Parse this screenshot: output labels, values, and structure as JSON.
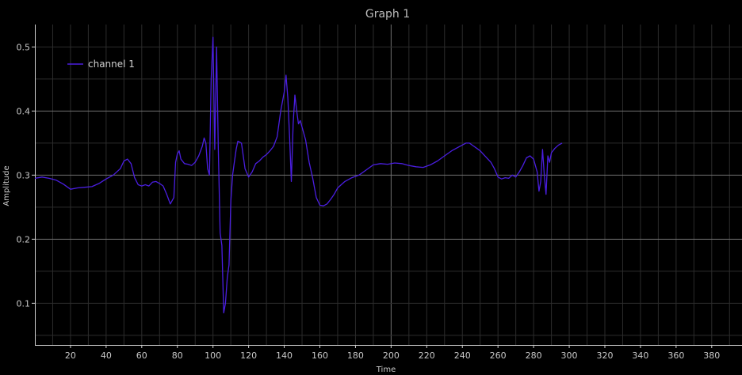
{
  "chart_data": {
    "type": "line",
    "title": "Graph 1",
    "xlabel": "Time",
    "ylabel": "Amplitude",
    "xlim": [
      0,
      397
    ],
    "ylim": [
      0.035,
      0.535
    ],
    "x_ticks": [
      20,
      40,
      60,
      80,
      100,
      120,
      140,
      160,
      180,
      200,
      220,
      240,
      260,
      280,
      300,
      320,
      340,
      360,
      380
    ],
    "y_ticks": [
      0.1,
      0.2,
      0.3,
      0.4,
      0.5
    ],
    "x_major_ticks": [
      200
    ],
    "y_major_ticks": [
      0.2,
      0.3,
      0.4
    ],
    "grid": true,
    "legend_position": "top-left",
    "series": [
      {
        "name": "channel 1",
        "color": "#4a1ee0",
        "x": [
          0,
          4,
          8,
          12,
          16,
          20,
          24,
          28,
          32,
          36,
          40,
          44,
          48,
          50,
          52,
          54,
          56,
          58,
          60,
          62,
          64,
          66,
          68,
          70,
          72,
          74,
          76,
          78,
          79,
          80,
          81,
          82,
          84,
          86,
          88,
          90,
          92,
          94,
          95,
          96,
          97,
          98,
          99,
          100,
          101,
          102,
          103,
          104,
          105,
          106,
          107,
          108,
          109,
          110,
          111,
          112,
          113,
          114,
          116,
          118,
          120,
          122,
          124,
          126,
          128,
          130,
          132,
          134,
          136,
          138,
          140,
          141,
          142,
          143,
          144,
          145,
          146,
          147,
          148,
          149,
          150,
          152,
          154,
          156,
          158,
          160,
          162,
          164,
          166,
          168,
          170,
          174,
          178,
          182,
          186,
          190,
          194,
          198,
          202,
          206,
          210,
          214,
          218,
          222,
          226,
          230,
          234,
          238,
          242,
          244,
          246,
          248,
          250,
          252,
          254,
          256,
          258,
          260,
          262,
          264,
          266,
          268,
          270,
          272,
          274,
          276,
          278,
          280,
          282,
          283,
          284,
          285,
          286,
          287,
          288,
          289,
          290,
          292,
          294,
          296
        ],
        "values": [
          0.295,
          0.297,
          0.295,
          0.292,
          0.286,
          0.278,
          0.28,
          0.281,
          0.282,
          0.287,
          0.294,
          0.3,
          0.31,
          0.322,
          0.325,
          0.318,
          0.296,
          0.285,
          0.283,
          0.285,
          0.283,
          0.289,
          0.29,
          0.287,
          0.283,
          0.27,
          0.255,
          0.265,
          0.32,
          0.333,
          0.338,
          0.325,
          0.318,
          0.317,
          0.315,
          0.32,
          0.33,
          0.345,
          0.358,
          0.35,
          0.31,
          0.3,
          0.45,
          0.515,
          0.34,
          0.5,
          0.34,
          0.21,
          0.19,
          0.085,
          0.1,
          0.14,
          0.16,
          0.26,
          0.3,
          0.32,
          0.34,
          0.353,
          0.35,
          0.31,
          0.297,
          0.305,
          0.318,
          0.322,
          0.328,
          0.332,
          0.338,
          0.345,
          0.36,
          0.4,
          0.43,
          0.456,
          0.42,
          0.36,
          0.29,
          0.38,
          0.425,
          0.4,
          0.38,
          0.385,
          0.375,
          0.355,
          0.32,
          0.295,
          0.265,
          0.253,
          0.252,
          0.255,
          0.262,
          0.27,
          0.28,
          0.29,
          0.296,
          0.3,
          0.308,
          0.316,
          0.318,
          0.317,
          0.319,
          0.318,
          0.315,
          0.313,
          0.312,
          0.316,
          0.322,
          0.33,
          0.338,
          0.344,
          0.35,
          0.35,
          0.346,
          0.342,
          0.338,
          0.332,
          0.326,
          0.32,
          0.31,
          0.297,
          0.294,
          0.296,
          0.295,
          0.3,
          0.297,
          0.305,
          0.315,
          0.327,
          0.33,
          0.325,
          0.305,
          0.275,
          0.29,
          0.34,
          0.3,
          0.27,
          0.33,
          0.32,
          0.335,
          0.342,
          0.347,
          0.35
        ]
      }
    ]
  }
}
